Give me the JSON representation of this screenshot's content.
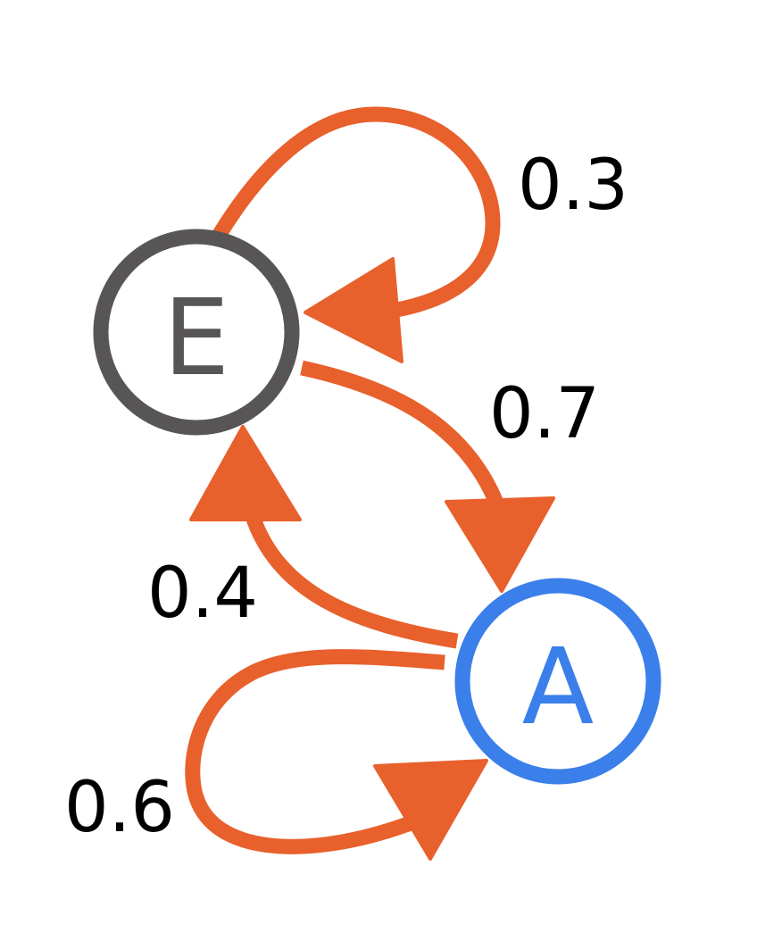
{
  "diagram": {
    "type": "state-transition-graph",
    "edge_color": "#E8602C",
    "nodes": [
      {
        "id": "E",
        "label": "E",
        "color": "#575555"
      },
      {
        "id": "A",
        "label": "A",
        "color": "#3B7FEA"
      }
    ],
    "edges": [
      {
        "from": "E",
        "to": "E",
        "label": "0.3"
      },
      {
        "from": "E",
        "to": "A",
        "label": "0.7"
      },
      {
        "from": "A",
        "to": "E",
        "label": "0.4"
      },
      {
        "from": "A",
        "to": "A",
        "label": "0.6"
      }
    ]
  }
}
